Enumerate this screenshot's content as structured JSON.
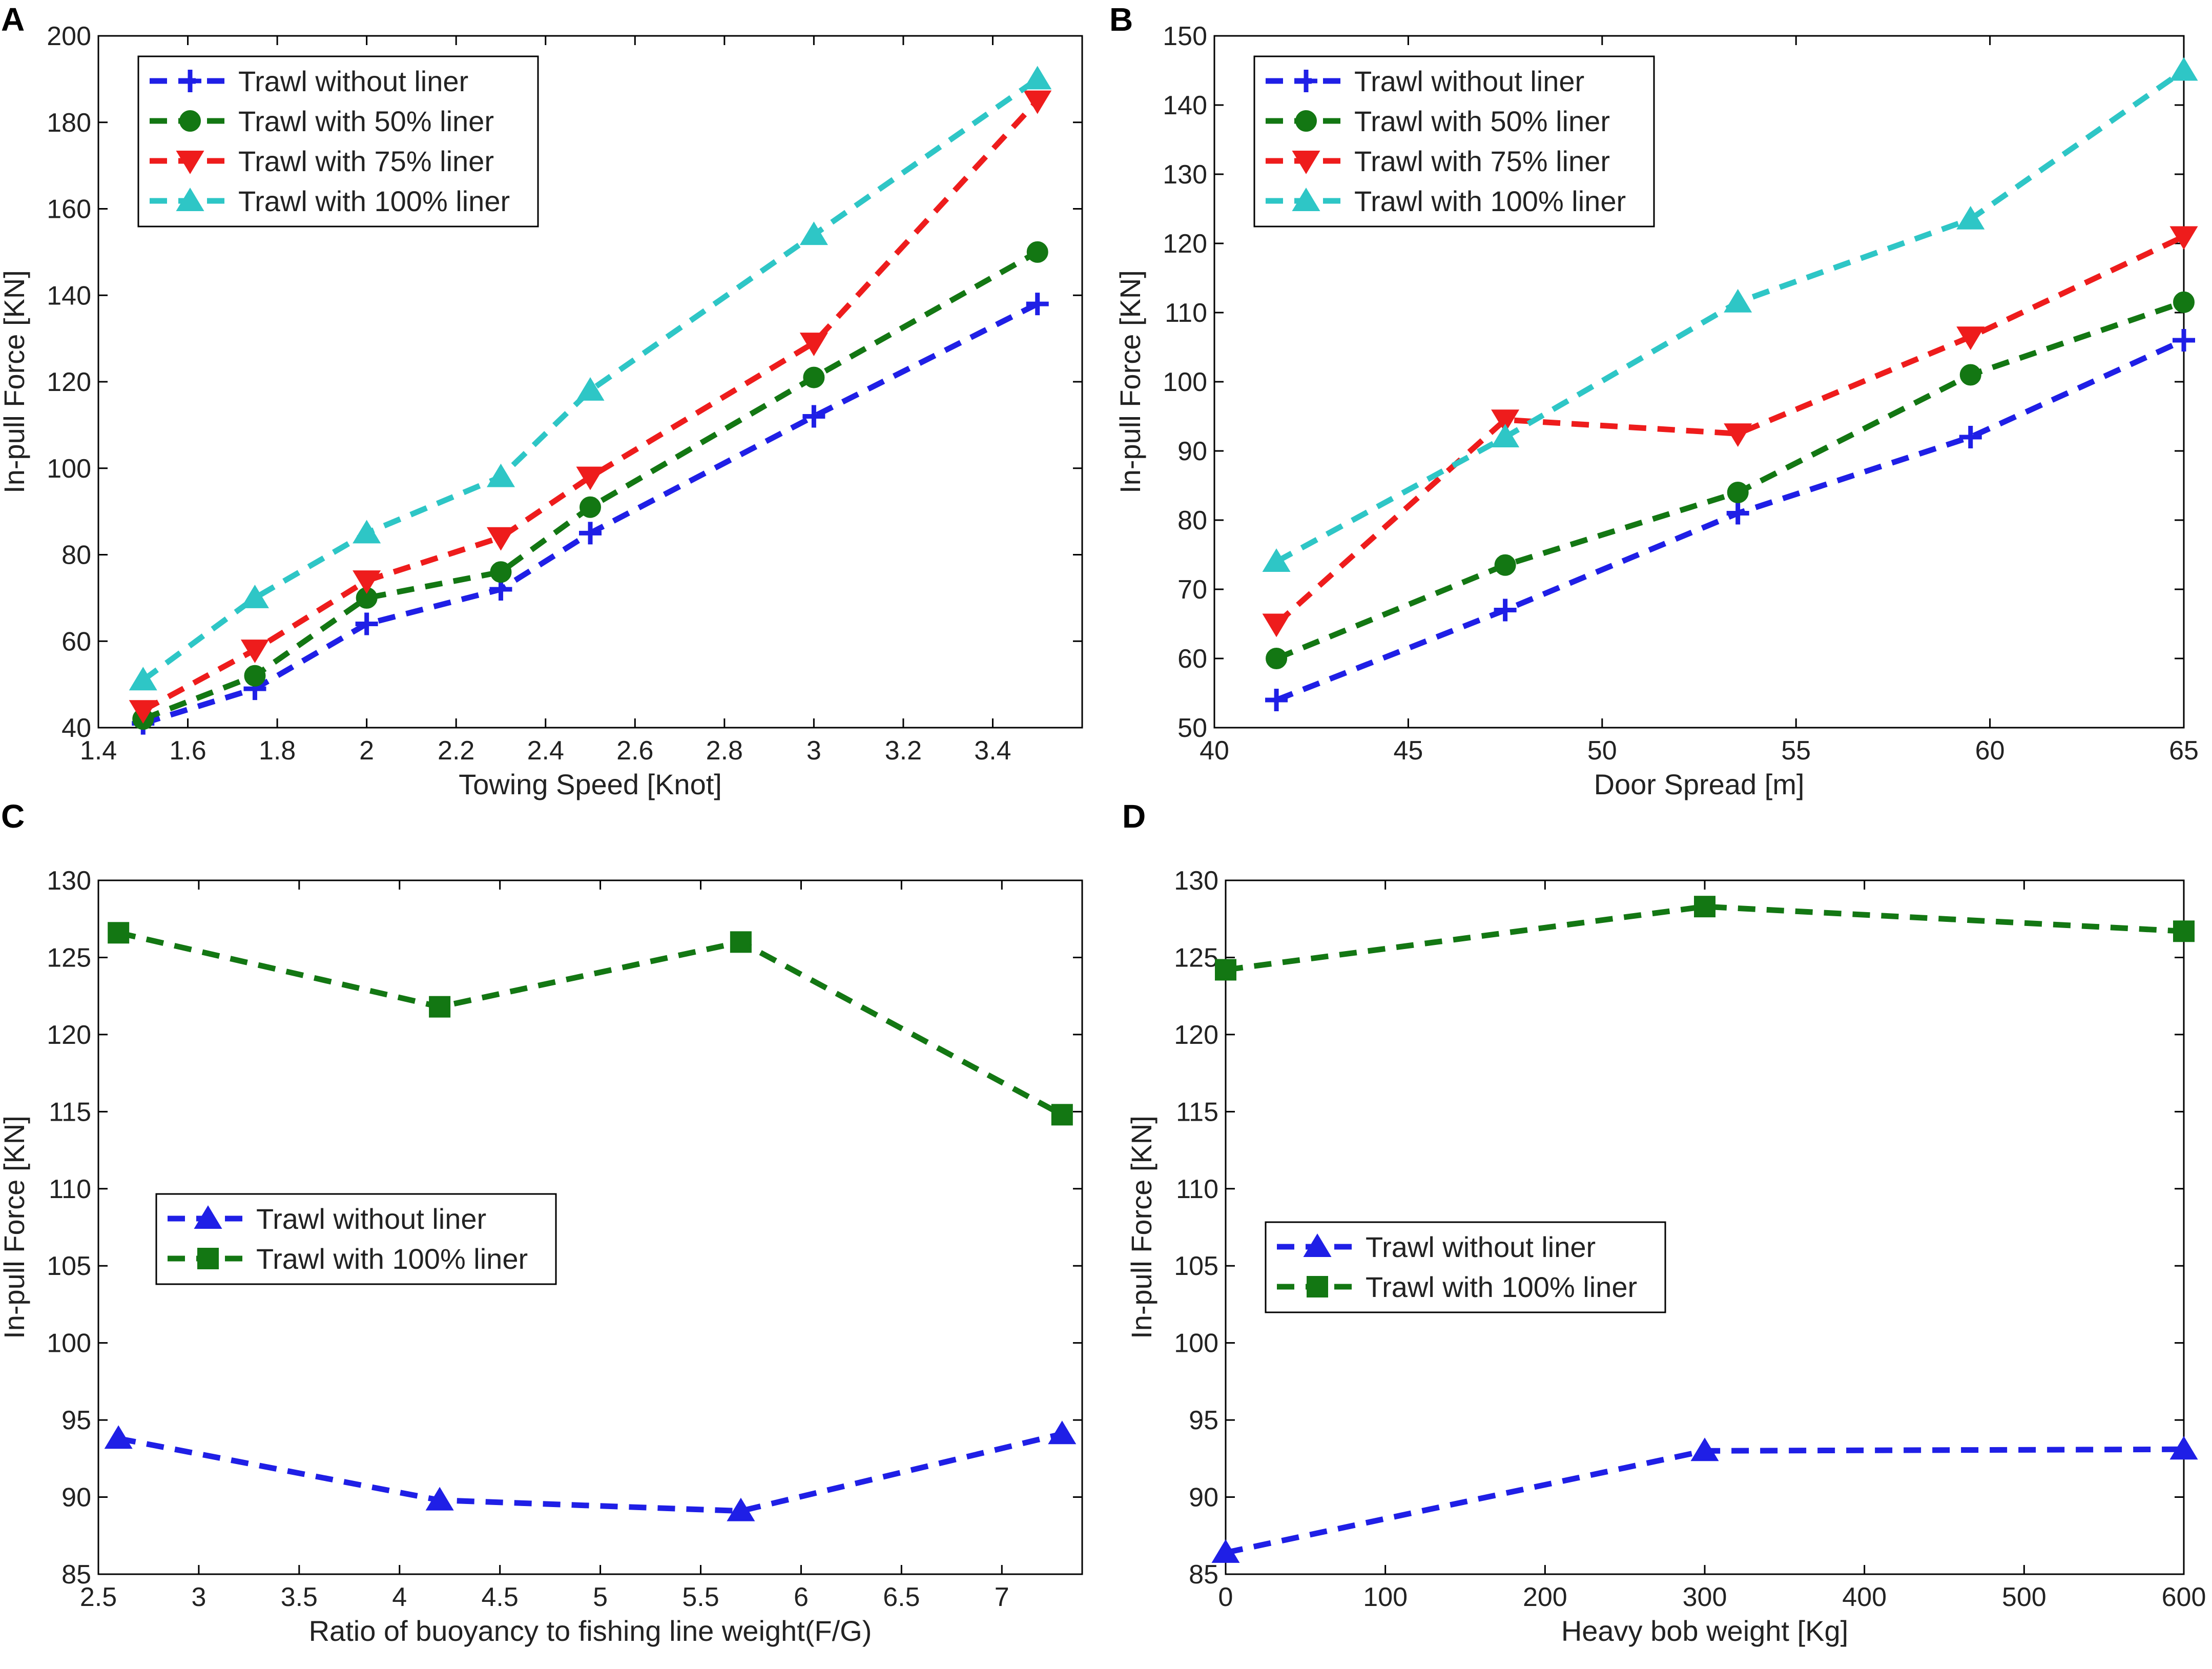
{
  "colors": {
    "blue": "#1f1fe6",
    "green": "#137713",
    "red": "#ee1c1c",
    "cyan": "#2ec6c6"
  },
  "chart_data": [
    {
      "panel": "A",
      "type": "line",
      "xlabel": "Towing Speed [Knot]",
      "ylabel": "In-pull Force [KN]",
      "xlim": [
        1.4,
        3.6
      ],
      "ylim": [
        40,
        200
      ],
      "xticks": [
        1.4,
        1.6,
        1.8,
        2,
        2.2,
        2.4,
        2.6,
        2.8,
        3,
        3.2,
        3.4
      ],
      "xtick_labels": [
        "1.4",
        "1.6",
        "1.8",
        "2",
        "2.2",
        "2.4",
        "2.6",
        "2.8",
        "3",
        "3.2",
        "3.4"
      ],
      "yticks": [
        40,
        60,
        80,
        100,
        120,
        140,
        160,
        180,
        200
      ],
      "ytick_labels": [
        "40",
        "60",
        "80",
        "100",
        "120",
        "140",
        "160",
        "180",
        "200"
      ],
      "legend_position": "top-left",
      "x": [
        1.5,
        1.75,
        2,
        2.3,
        2.5,
        3,
        3.5
      ],
      "series": [
        {
          "name": "Trawl without liner",
          "color": "blue",
          "marker": "plus",
          "values": [
            41,
            49,
            64,
            72,
            85,
            112,
            138
          ]
        },
        {
          "name": "Trawl with 50% liner",
          "color": "green",
          "marker": "circle",
          "values": [
            42,
            52,
            70,
            76,
            91,
            121,
            150
          ]
        },
        {
          "name": "Trawl with 75% liner",
          "color": "red",
          "marker": "tri-down",
          "values": [
            44,
            58,
            74,
            84,
            98,
            129,
            185
          ]
        },
        {
          "name": "Trawl with 100% liner",
          "color": "cyan",
          "marker": "tri-up",
          "values": [
            51,
            70,
            85,
            98,
            118,
            154,
            190
          ]
        }
      ]
    },
    {
      "panel": "B",
      "type": "line",
      "xlabel": "Door Spread [m]",
      "ylabel": "In-pull Force [KN]",
      "xlim": [
        40,
        65
      ],
      "ylim": [
        50,
        150
      ],
      "xticks": [
        40,
        45,
        50,
        55,
        60,
        65
      ],
      "xtick_labels": [
        "40",
        "45",
        "50",
        "55",
        "60",
        "65"
      ],
      "yticks": [
        50,
        60,
        70,
        80,
        90,
        100,
        110,
        120,
        130,
        140,
        150
      ],
      "ytick_labels": [
        "50",
        "60",
        "70",
        "80",
        "90",
        "100",
        "110",
        "120",
        "130",
        "140",
        "150"
      ],
      "legend_position": "top-left",
      "x": [
        41.6,
        47.5,
        53.5,
        59.5,
        65
      ],
      "series": [
        {
          "name": "Trawl without liner",
          "color": "blue",
          "marker": "plus",
          "values": [
            54,
            67,
            81,
            92,
            106
          ]
        },
        {
          "name": "Trawl with 50% liner",
          "color": "green",
          "marker": "circle",
          "values": [
            60,
            73.5,
            84,
            101,
            111.5
          ]
        },
        {
          "name": "Trawl with 75% liner",
          "color": "red",
          "marker": "tri-down",
          "values": [
            65,
            94.5,
            92.5,
            106.5,
            121
          ]
        },
        {
          "name": "Trawl with 100% liner",
          "color": "cyan",
          "marker": "tri-up",
          "values": [
            74,
            92,
            111.5,
            123.5,
            145
          ]
        }
      ]
    },
    {
      "panel": "C",
      "type": "line",
      "xlabel": "Ratio of buoyancy to fishing line weight(F/G)",
      "ylabel": "In-pull Force [KN]",
      "xlim": [
        2.5,
        7.4
      ],
      "ylim": [
        85,
        130
      ],
      "xticks": [
        2.5,
        3,
        3.5,
        4,
        4.5,
        5,
        5.5,
        6,
        6.5,
        7
      ],
      "xtick_labels": [
        "2.5",
        "3",
        "3.5",
        "4",
        "4.5",
        "5",
        "5.5",
        "6",
        "6.5",
        "7"
      ],
      "yticks": [
        85,
        90,
        95,
        100,
        105,
        110,
        115,
        120,
        125,
        130
      ],
      "ytick_labels": [
        "85",
        "90",
        "95",
        "100",
        "105",
        "110",
        "115",
        "120",
        "125",
        "130"
      ],
      "legend_position": "center-left",
      "x": [
        2.6,
        4.2,
        5.7,
        7.3
      ],
      "series": [
        {
          "name": "Trawl without liner",
          "color": "blue",
          "marker": "tri-up",
          "values": [
            93.8,
            89.8,
            89.1,
            94.1
          ]
        },
        {
          "name": "Trawl with 100% liner",
          "color": "green",
          "marker": "square",
          "values": [
            126.6,
            121.8,
            126,
            114.8
          ]
        }
      ]
    },
    {
      "panel": "D",
      "type": "line",
      "xlabel": "Heavy bob weight [Kg]",
      "ylabel": "In-pull Force [KN]",
      "xlim": [
        0,
        600
      ],
      "ylim": [
        85,
        130
      ],
      "xticks": [
        0,
        100,
        200,
        300,
        400,
        500,
        600
      ],
      "xtick_labels": [
        "0",
        "100",
        "200",
        "300",
        "400",
        "500",
        "600"
      ],
      "yticks": [
        85,
        90,
        95,
        100,
        105,
        110,
        115,
        120,
        125,
        130
      ],
      "ytick_labels": [
        "85",
        "90",
        "95",
        "100",
        "105",
        "110",
        "115",
        "120",
        "125",
        "130"
      ],
      "legend_position": "center-left",
      "x": [
        0,
        300,
        600
      ],
      "series": [
        {
          "name": "Trawl without liner",
          "color": "blue",
          "marker": "tri-up",
          "values": [
            86.4,
            93,
            93.1
          ]
        },
        {
          "name": "Trawl with 100% liner",
          "color": "green",
          "marker": "square",
          "values": [
            124.2,
            128.3,
            126.7
          ]
        }
      ]
    }
  ]
}
